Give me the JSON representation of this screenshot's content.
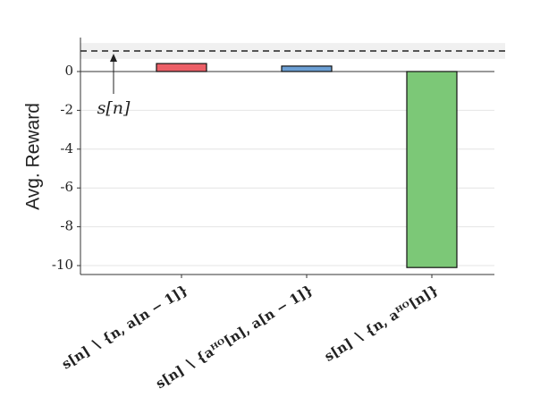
{
  "chart_data": {
    "type": "bar",
    "y_label": "Avg. Reward",
    "categories": [
      "𝐬[n] ∖ {n, 𝐚[n − 1]}",
      "𝐬[n] ∖ {𝐚ᴴᴼ[n], 𝐚[n − 1]}",
      "𝐬[n] ∖ {n, 𝐚ᴴᴼ[n]}"
    ],
    "values": [
      0.41,
      0.28,
      -10.1
    ],
    "colors": [
      "#ec5f67",
      "#6b9fd4",
      "#7cc877"
    ],
    "ylim": [
      -10.46,
      1.75
    ],
    "yticks": [
      0,
      -2,
      -4,
      -6,
      -8,
      -10
    ],
    "grid": true,
    "reference": {
      "label": "s[n]",
      "value": 1.06,
      "band": [
        0.65,
        1.47
      ]
    }
  }
}
